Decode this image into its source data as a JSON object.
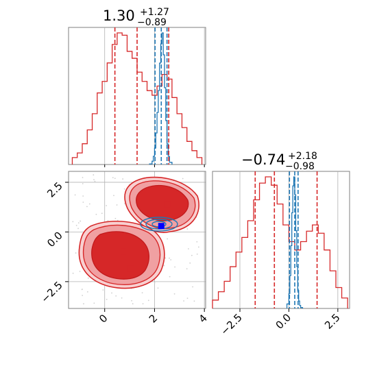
{
  "chart_data": [
    {
      "panel": "marginal-x",
      "type": "histogram",
      "title": {
        "median": "1.30",
        "plus": "+1.27",
        "minus": "−0.89"
      },
      "xlim": [
        -1.45,
        4.05
      ],
      "grid": true,
      "series": [
        {
          "name": "",
          "color": "#d62728",
          "bins": [
            -1.3,
            -1.1,
            -0.9,
            -0.7,
            -0.5,
            -0.3,
            -0.1,
            0.1,
            0.3,
            0.5,
            0.7,
            0.9,
            1.1,
            1.3,
            1.5,
            1.7,
            1.9,
            2.1,
            2.3,
            2.5,
            2.7,
            2.9,
            3.1,
            3.3,
            3.5,
            3.7,
            3.9
          ],
          "counts": [
            0.3,
            0.5,
            0.9,
            1.5,
            2.2,
            3.1,
            3.6,
            4.4,
            5.2,
            5.7,
            5.6,
            4.9,
            4.6,
            4.0,
            3.6,
            3.2,
            3.0,
            3.4,
            3.9,
            3.7,
            2.9,
            2.2,
            1.6,
            1.0,
            0.6,
            0.3
          ],
          "quantiles": [
            0.41,
            1.3,
            2.57
          ]
        },
        {
          "name": "",
          "color": "#1f77b4",
          "bins": [
            1.8,
            1.9,
            1.95,
            2.0,
            2.05,
            2.1,
            2.15,
            2.2,
            2.25,
            2.3,
            2.35,
            2.4,
            2.45,
            2.5,
            2.55,
            2.6,
            2.7
          ],
          "counts": [
            0.2,
            1.2,
            3.0,
            6.0,
            11.5,
            19.0,
            27.0,
            37.0,
            44.0,
            48.0,
            40.0,
            28.0,
            16.0,
            7.5,
            3.0,
            0.8
          ],
          "quantiles": [
            2.02,
            2.27,
            2.5
          ]
        }
      ]
    },
    {
      "panel": "marginal-y",
      "type": "histogram",
      "title": {
        "median": "−0.74",
        "plus": "+2.18",
        "minus": "−0.98"
      },
      "xlim": [
        -3.9,
        3.1
      ],
      "xticks": [
        "−2.5",
        "0.0",
        "2.5"
      ],
      "grid": true,
      "series": [
        {
          "name": "",
          "color": "#d62728",
          "bins": [
            -3.9,
            -3.6,
            -3.3,
            -3.0,
            -2.7,
            -2.4,
            -2.1,
            -1.8,
            -1.5,
            -1.2,
            -0.9,
            -0.6,
            -0.3,
            0.0,
            0.3,
            0.6,
            0.9,
            1.2,
            1.5,
            1.8,
            2.1,
            2.4,
            2.7,
            3.0
          ],
          "counts": [
            0.4,
            0.8,
            1.3,
            2.0,
            2.7,
            3.4,
            4.2,
            5.2,
            6.0,
            6.3,
            5.9,
            5.0,
            4.0,
            3.2,
            2.8,
            3.2,
            3.7,
            4.0,
            3.6,
            2.8,
            1.8,
            1.0,
            0.5
          ],
          "quantiles": [
            -1.72,
            -0.74,
            1.44
          ]
        },
        {
          "name": "",
          "color": "#1f77b4",
          "bins": [
            -0.1,
            0.0,
            0.05,
            0.1,
            0.15,
            0.2,
            0.25,
            0.3,
            0.35,
            0.4,
            0.45,
            0.5,
            0.55,
            0.6,
            0.7
          ],
          "counts": [
            1.5,
            5.0,
            11.0,
            21.0,
            32.0,
            41.0,
            44.0,
            38.0,
            26.0,
            14.0,
            6.0,
            2.5,
            1.0,
            0.3
          ],
          "quantiles": [
            0.03,
            0.3,
            0.47
          ]
        }
      ]
    },
    {
      "panel": "joint",
      "type": "contour",
      "xlim": [
        -1.45,
        4.05
      ],
      "ylim": [
        -3.85,
        3.05
      ],
      "xticks": [
        "0",
        "2",
        "4"
      ],
      "yticks": [
        "2.5",
        "0.0",
        "−2.5"
      ],
      "grid": true,
      "red_markers": [
        [
          0.75,
          -1.0
        ],
        [
          1.05,
          -1.85
        ],
        [
          2.5,
          1.4
        ]
      ],
      "blue_marker": [
        2.27,
        0.3
      ],
      "colors": {
        "red": "#d62728",
        "red_mid": "#f0a0a2",
        "red_light": "#f8cfd0",
        "blue": "#1f77b4",
        "marker_blue": "#0000ff"
      }
    }
  ]
}
